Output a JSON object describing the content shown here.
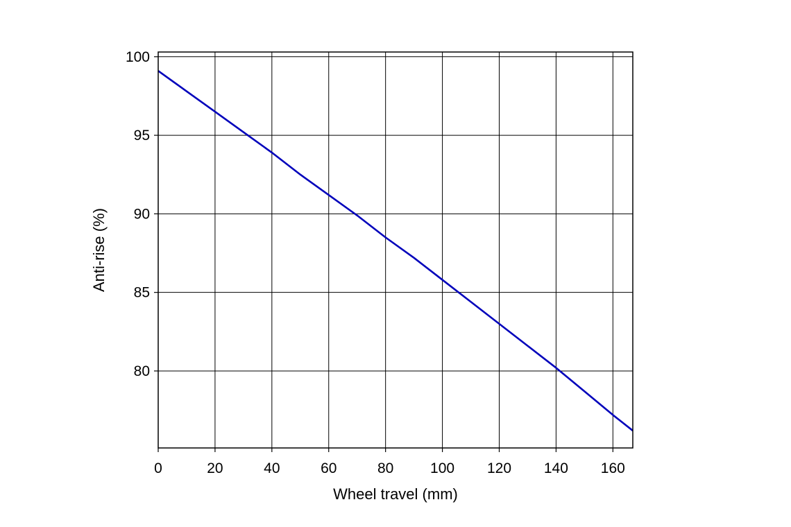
{
  "chart_data": {
    "type": "line",
    "title": "",
    "xlabel": "Wheel travel (mm)",
    "ylabel": "Anti-rise (%)",
    "xlim": [
      0,
      167
    ],
    "ylim": [
      75.1,
      100.3
    ],
    "x_ticks": [
      0,
      20,
      40,
      60,
      80,
      100,
      120,
      140,
      160
    ],
    "y_ticks": [
      80,
      85,
      90,
      95,
      100
    ],
    "grid": true,
    "legend": "none",
    "series_color": "#0000bb",
    "grid_color": "#000000",
    "series": [
      {
        "x": [
          0,
          10,
          20,
          30,
          40,
          50,
          60,
          70,
          80,
          90,
          100,
          110,
          120,
          130,
          140,
          150,
          160,
          167
        ],
        "y": [
          99.1,
          97.8,
          96.5,
          95.2,
          93.9,
          92.5,
          91.2,
          89.9,
          88.5,
          87.2,
          85.8,
          84.4,
          83.0,
          81.6,
          80.2,
          78.7,
          77.2,
          76.2
        ]
      }
    ]
  }
}
